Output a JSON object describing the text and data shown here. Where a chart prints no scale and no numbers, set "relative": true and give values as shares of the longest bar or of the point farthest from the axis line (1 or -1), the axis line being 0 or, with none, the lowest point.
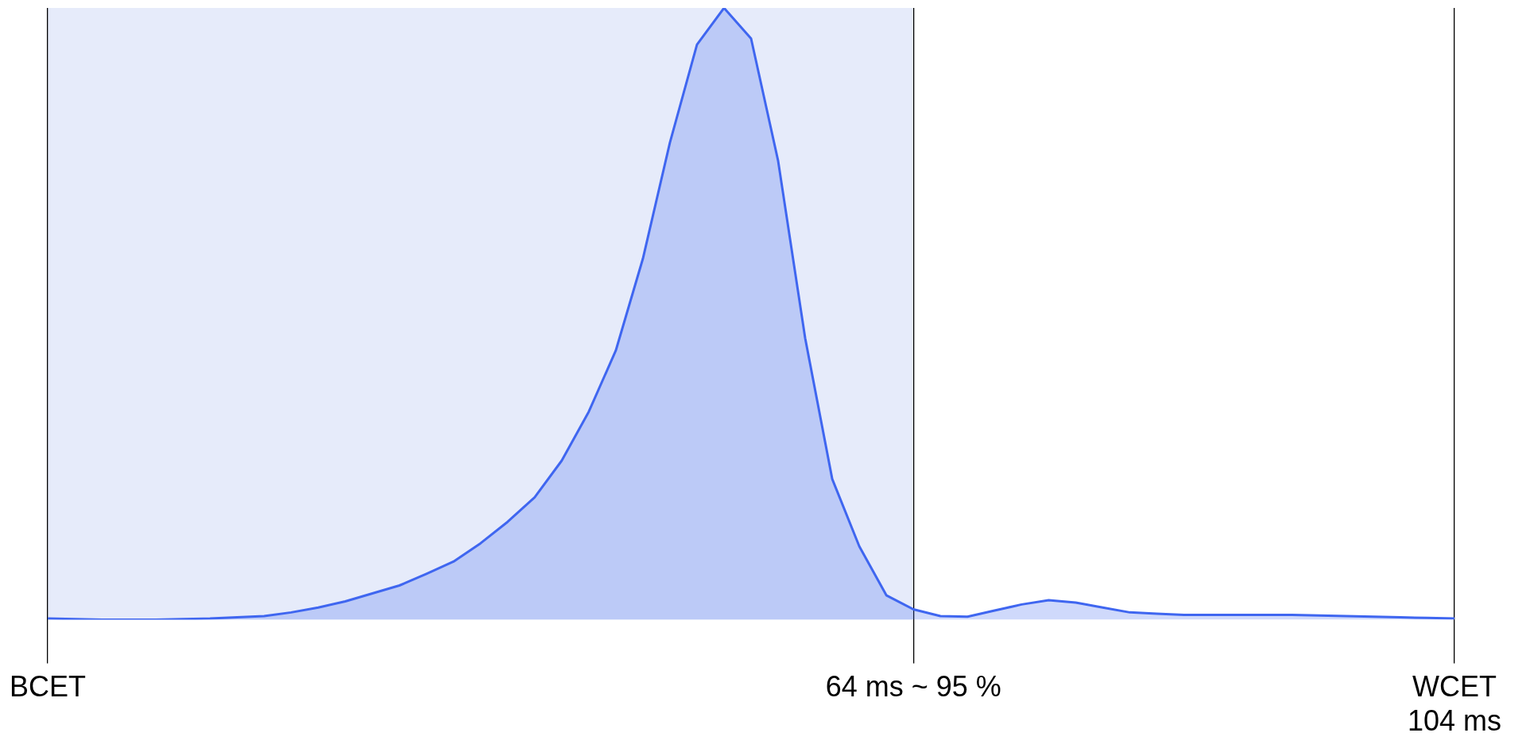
{
  "chart_data": {
    "type": "area",
    "relative": true,
    "grid": "x",
    "legend": false,
    "marker": "none",
    "line_style": "solid",
    "categories": [
      "BCET",
      null,
      null,
      null,
      null,
      null,
      null,
      null,
      null,
      null,
      null,
      null,
      null,
      null,
      null,
      null,
      null,
      null,
      null,
      null,
      null,
      null,
      null,
      null,
      null,
      null,
      null,
      null,
      null,
      null,
      null,
      null,
      "64 ms ~ 95 %",
      null,
      null,
      null,
      null,
      null,
      null,
      null,
      null,
      null,
      null,
      null,
      null,
      null,
      null,
      null,
      null,
      null,
      null,
      null,
      "WCET\n104 ms"
    ],
    "series": [
      {
        "color": "#3f66f0",
        "values": [
          0.002,
          0.001,
          0,
          0,
          0,
          0.001,
          0.002,
          0.004,
          0.006,
          0.012,
          0.02,
          0.03,
          0.043,
          0.056,
          0.075,
          0.095,
          0.125,
          0.16,
          0.2,
          0.26,
          0.34,
          0.44,
          0.59,
          0.78,
          0.94,
          1,
          0.95,
          0.75,
          0.46,
          0.23,
          0.12,
          0.04,
          0.017,
          0.006,
          0.005,
          0.015,
          0.025,
          0.032,
          0.028,
          0.02,
          0.012,
          0.01,
          0.008,
          0.008,
          0.008,
          0.008,
          0.008,
          0.007,
          0.006,
          0.005,
          0.004,
          0.003,
          0.002
        ]
      }
    ],
    "bands": [
      {
        "axis": "x",
        "from": "BCET",
        "to": "64 ms ~ 95 %",
        "color": "#e6ebfa"
      }
    ]
  }
}
